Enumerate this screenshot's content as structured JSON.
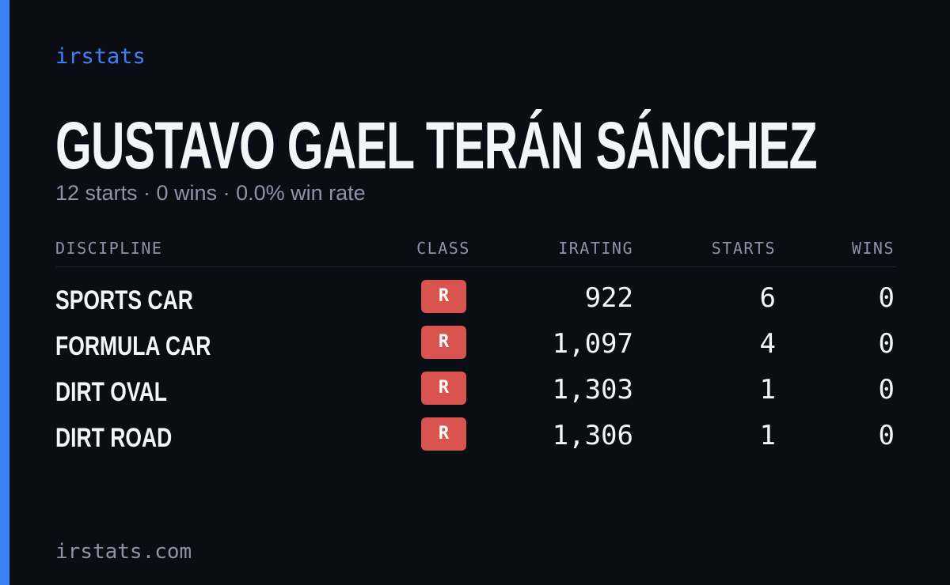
{
  "brand": "irstats",
  "header": {
    "name": "GUSTAVO GAEL TERÁN SÁNCHEZ",
    "summary": "12 starts · 0 wins · 0.0% win rate"
  },
  "table": {
    "columns": [
      "DISCIPLINE",
      "CLASS",
      "IRATING",
      "STARTS",
      "WINS"
    ],
    "rows": [
      [
        "SPORTS CAR",
        "R",
        "922",
        "6",
        "0"
      ],
      [
        "FORMULA CAR",
        "R",
        "1,097",
        "4",
        "0"
      ],
      [
        "DIRT OVAL",
        "R",
        "1,303",
        "1",
        "0"
      ],
      [
        "DIRT ROAD",
        "R",
        "1,306",
        "1",
        "0"
      ]
    ]
  },
  "footer": "irstats.com"
}
